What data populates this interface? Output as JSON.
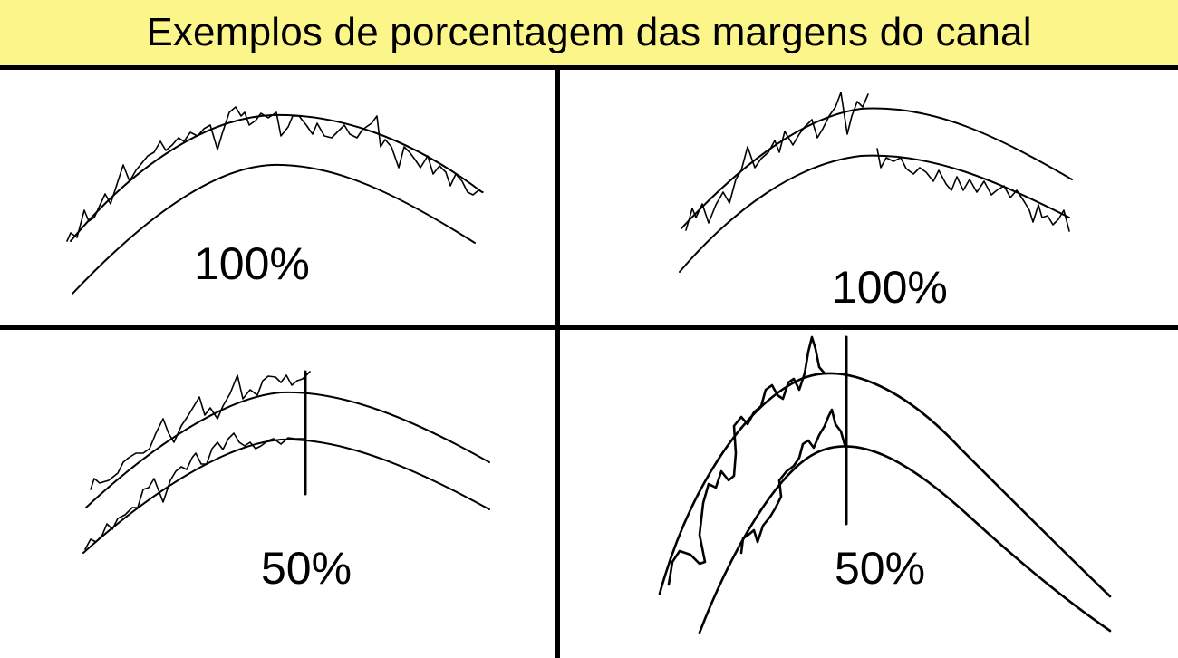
{
  "title": "Exemplos de porcentagem das margens do canal",
  "colors": {
    "title_background": "#fbf58a",
    "lines": "#000000",
    "background": "#ffffff"
  },
  "panels": [
    {
      "label": "100%"
    },
    {
      "label": "100%"
    },
    {
      "label": "50%"
    },
    {
      "label": "50%"
    }
  ]
}
